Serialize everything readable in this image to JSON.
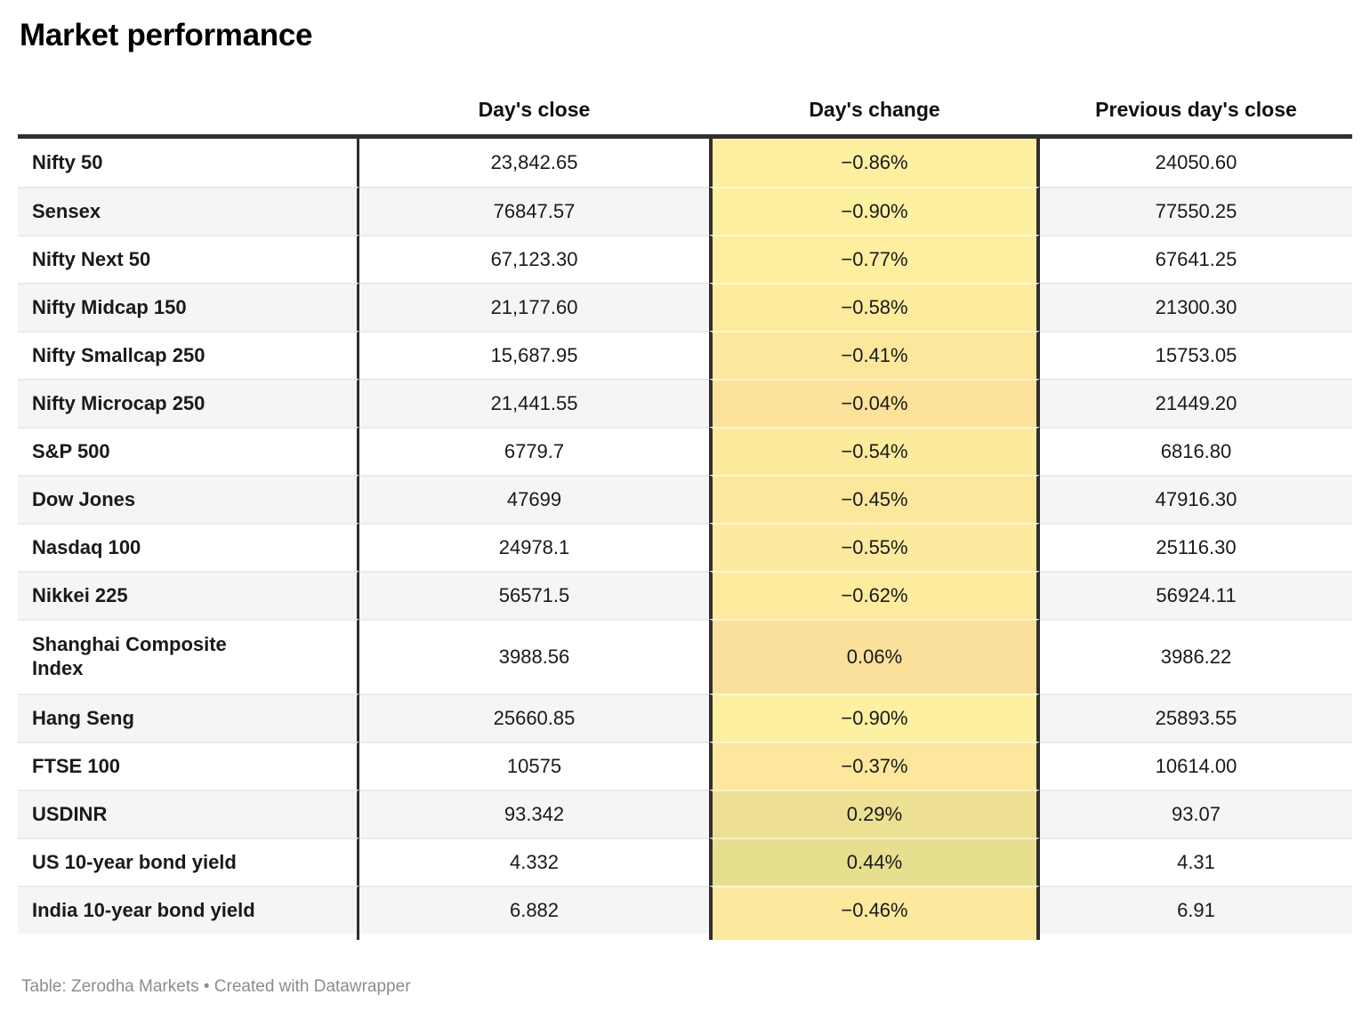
{
  "title": "Market performance",
  "header": {
    "label_col": "",
    "close_col": "Day's close",
    "change_col": "Day's change",
    "prev_col": "Previous day's close"
  },
  "rows": [
    {
      "label": "Nifty 50",
      "close": "23,842.65",
      "change": "−0.86%",
      "prev": "24050.60",
      "change_bg": "#fdefa0"
    },
    {
      "label": "Sensex",
      "close": "76847.57",
      "change": "−0.90%",
      "prev": "77550.25",
      "change_bg": "#fdf0a0"
    },
    {
      "label": "Nifty Next 50",
      "close": "67,123.30",
      "change": "−0.77%",
      "prev": "67641.25",
      "change_bg": "#fdeea0"
    },
    {
      "label": "Nifty Midcap 150",
      "close": "21,177.60",
      "change": "−0.58%",
      "prev": "21300.30",
      "change_bg": "#fdeb9e"
    },
    {
      "label": "Nifty Smallcap 250",
      "close": "15,687.95",
      "change": "−0.41%",
      "prev": "15753.05",
      "change_bg": "#fce89c"
    },
    {
      "label": "Nifty Microcap 250",
      "close": "21,441.55",
      "change": "−0.04%",
      "prev": "21449.20",
      "change_bg": "#fce29a"
    },
    {
      "label": "S&P 500",
      "close": "6779.7",
      "change": "−0.54%",
      "prev": "6816.80",
      "change_bg": "#fcea9d"
    },
    {
      "label": "Dow Jones",
      "close": "47699",
      "change": "−0.45%",
      "prev": "47916.30",
      "change_bg": "#fce89d"
    },
    {
      "label": "Nasdaq 100",
      "close": "24978.1",
      "change": "−0.55%",
      "prev": "25116.30",
      "change_bg": "#fcea9e"
    },
    {
      "label": "Nikkei 225",
      "close": "56571.5",
      "change": "−0.62%",
      "prev": "56924.11",
      "change_bg": "#fdeb9e"
    },
    {
      "label": "Shanghai Composite\nIndex",
      "close": "3988.56",
      "change": "0.06%",
      "prev": "3986.22",
      "change_bg": "#fae09a",
      "tall": true
    },
    {
      "label": "Hang Seng",
      "close": "25660.85",
      "change": "−0.90%",
      "prev": "25893.55",
      "change_bg": "#fdf0a0"
    },
    {
      "label": "FTSE 100",
      "close": "10575",
      "change": "−0.37%",
      "prev": "10614.00",
      "change_bg": "#fce79c"
    },
    {
      "label": "USDINR",
      "close": "93.342",
      "change": "0.29%",
      "prev": "93.07",
      "change_bg": "#eee092"
    },
    {
      "label": "US 10-year bond yield",
      "close": "4.332",
      "change": "0.44%",
      "prev": "4.31",
      "change_bg": "#e6e08e"
    },
    {
      "label": "India 10-year bond yield",
      "close": "6.882",
      "change": "−0.46%",
      "prev": "6.91",
      "change_bg": "#fce99d"
    }
  ],
  "footer": "Table: Zerodha Markets • Created with Datawrapper",
  "colors": {
    "header_rule": "#2f2f2f",
    "column_divider": "#2f2f2f",
    "alt_row_bg": "#f5f5f5",
    "row_separator": "#eaeaea",
    "text": "#1a1a1a",
    "footer_text": "#8c8c8c",
    "change_negative_high": "#fdf0a0",
    "change_near_zero": "#fce29a",
    "change_positive_high": "#e6e08e"
  },
  "chart_data": {
    "type": "table",
    "title": "Market performance",
    "columns": [
      "",
      "Day's close",
      "Day's change",
      "Previous day's close"
    ],
    "rows": [
      [
        "Nifty 50",
        23842.65,
        -0.86,
        24050.6
      ],
      [
        "Sensex",
        76847.57,
        -0.9,
        77550.25
      ],
      [
        "Nifty Next 50",
        67123.3,
        -0.77,
        67641.25
      ],
      [
        "Nifty Midcap 150",
        21177.6,
        -0.58,
        21300.3
      ],
      [
        "Nifty Smallcap 250",
        15687.95,
        -0.41,
        15753.05
      ],
      [
        "Nifty Microcap 250",
        21441.55,
        -0.04,
        21449.2
      ],
      [
        "S&P 500",
        6779.7,
        -0.54,
        6816.8
      ],
      [
        "Dow Jones",
        47699,
        -0.45,
        47916.3
      ],
      [
        "Nasdaq 100",
        24978.1,
        -0.55,
        25116.3
      ],
      [
        "Nikkei 225",
        56571.5,
        -0.62,
        56924.11
      ],
      [
        "Shanghai Composite Index",
        3988.56,
        0.06,
        3986.22
      ],
      [
        "Hang Seng",
        25660.85,
        -0.9,
        25893.55
      ],
      [
        "FTSE 100",
        10575,
        -0.37,
        10614.0
      ],
      [
        "USDINR",
        93.342,
        0.29,
        93.07
      ],
      [
        "US 10-year bond yield",
        4.332,
        0.44,
        4.31
      ],
      [
        "India 10-year bond yield",
        6.882,
        -0.46,
        6.91
      ]
    ],
    "notes": "Day's change column is shaded on a yellow (negative) to olive-green (positive) scale"
  }
}
